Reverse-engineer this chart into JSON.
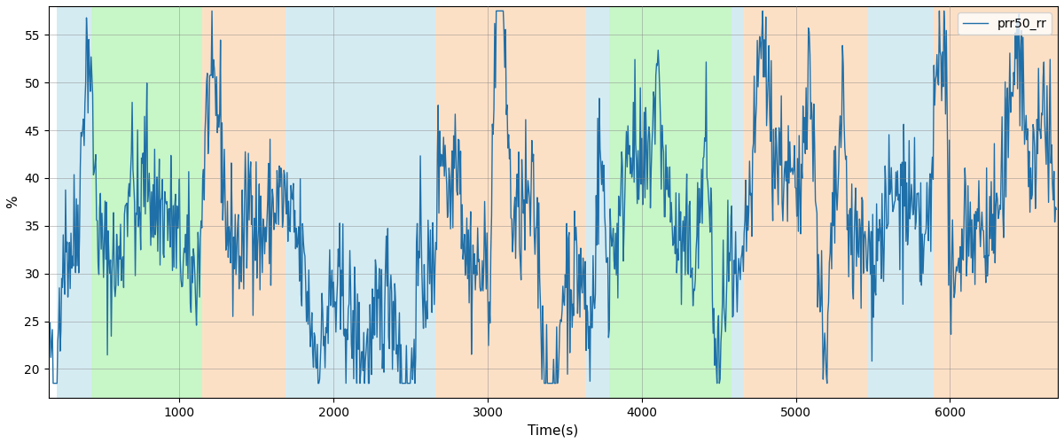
{
  "xlabel": "Time(s)",
  "ylabel": "%",
  "legend_label": "prr50_rr",
  "line_color": "#1f6fa8",
  "line_width": 1.0,
  "xlim": [
    150,
    6700
  ],
  "ylim": [
    17,
    58
  ],
  "yticks": [
    20,
    25,
    30,
    35,
    40,
    45,
    50,
    55
  ],
  "xticks": [
    1000,
    2000,
    3000,
    4000,
    5000,
    6000
  ],
  "figsize": [
    12.0,
    5.0
  ],
  "dpi": 100,
  "colored_bands": [
    {
      "xmin": 205,
      "xmax": 430,
      "color": "#add8e6",
      "alpha": 0.5
    },
    {
      "xmin": 430,
      "xmax": 1145,
      "color": "#90ee90",
      "alpha": 0.5
    },
    {
      "xmin": 1145,
      "xmax": 1690,
      "color": "#fac898",
      "alpha": 0.55
    },
    {
      "xmin": 1690,
      "xmax": 2660,
      "color": "#add8e6",
      "alpha": 0.5
    },
    {
      "xmin": 2660,
      "xmax": 2800,
      "color": "#fac898",
      "alpha": 0.55
    },
    {
      "xmin": 2800,
      "xmax": 3640,
      "color": "#fac898",
      "alpha": 0.55
    },
    {
      "xmin": 3640,
      "xmax": 3790,
      "color": "#add8e6",
      "alpha": 0.5
    },
    {
      "xmin": 3790,
      "xmax": 4580,
      "color": "#90ee90",
      "alpha": 0.5
    },
    {
      "xmin": 4580,
      "xmax": 4660,
      "color": "#add8e6",
      "alpha": 0.5
    },
    {
      "xmin": 4660,
      "xmax": 5470,
      "color": "#fac898",
      "alpha": 0.55
    },
    {
      "xmin": 5470,
      "xmax": 5895,
      "color": "#add8e6",
      "alpha": 0.5
    },
    {
      "xmin": 5895,
      "xmax": 6700,
      "color": "#fac898",
      "alpha": 0.55
    }
  ]
}
